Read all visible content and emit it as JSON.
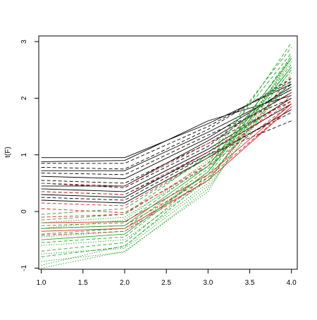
{
  "chart_data": {
    "type": "line",
    "title": "",
    "xlabel": "",
    "ylabel": "t(F)",
    "x": [
      1.0,
      2.0,
      3.0,
      4.0
    ],
    "xlim": [
      0.97,
      4.07
    ],
    "ylim": [
      -1.02,
      3.1
    ],
    "x_ticks": [
      "1.0",
      "1.5",
      "2.0",
      "2.5",
      "3.0",
      "3.5",
      "4.0"
    ],
    "x_tick_values": [
      1.0,
      1.5,
      2.0,
      2.5,
      3.0,
      3.5,
      4.0
    ],
    "y_ticks": [
      "-1",
      "0",
      "1",
      "2",
      "3"
    ],
    "y_tick_values": [
      -1,
      0,
      1,
      2,
      3
    ],
    "grid": false,
    "legend": "none",
    "colors": {
      "group_black": "#000000",
      "group_red": "#d62728",
      "group_green": "#2ca02c",
      "axis": "#000000"
    },
    "series_groups": [
      {
        "color_key": "group_black",
        "dash": "solid",
        "series": [
          {
            "values": [
              0.95,
              0.95,
              1.55,
              2.25
            ]
          },
          {
            "values": [
              0.88,
              0.9,
              1.6,
              2.05
            ]
          },
          {
            "values": [
              0.72,
              0.72,
              1.4,
              2.15
            ]
          },
          {
            "values": [
              0.62,
              0.58,
              1.3,
              2.2
            ]
          },
          {
            "values": [
              0.45,
              0.45,
              1.25,
              2.1
            ]
          },
          {
            "values": [
              0.4,
              0.35,
              1.1,
              2.0
            ]
          },
          {
            "values": [
              0.3,
              0.25,
              1.05,
              1.9
            ]
          },
          {
            "values": [
              0.2,
              0.15,
              0.95,
              1.8
            ]
          }
        ]
      },
      {
        "color_key": "group_black",
        "dash": "dashed",
        "series": [
          {
            "values": [
              0.85,
              0.85,
              1.5,
              2.3
            ]
          },
          {
            "values": [
              0.78,
              0.75,
              1.45,
              2.35
            ]
          },
          {
            "values": [
              0.68,
              0.65,
              1.35,
              2.0
            ]
          },
          {
            "values": [
              0.55,
              0.5,
              1.2,
              1.95
            ]
          },
          {
            "values": [
              0.5,
              0.42,
              1.15,
              2.25
            ]
          },
          {
            "values": [
              0.35,
              0.3,
              1.0,
              1.75
            ]
          },
          {
            "values": [
              0.25,
              0.2,
              1.0,
              1.6
            ]
          }
        ]
      },
      {
        "color_key": "group_red",
        "dash": "dashed",
        "series": [
          {
            "values": [
              0.5,
              0.45,
              1.2,
              2.1
            ]
          },
          {
            "values": [
              0.35,
              0.3,
              1.05,
              2.0
            ]
          },
          {
            "values": [
              0.15,
              0.1,
              0.95,
              1.95
            ]
          },
          {
            "values": [
              0.05,
              -0.02,
              0.8,
              1.9
            ]
          },
          {
            "values": [
              -0.1,
              -0.05,
              0.85,
              2.05
            ]
          },
          {
            "values": [
              -0.3,
              -0.25,
              0.6,
              1.85
            ]
          },
          {
            "values": [
              -0.42,
              -0.35,
              0.55,
              2.4
            ]
          }
        ]
      },
      {
        "color_key": "group_red",
        "dash": "solid",
        "series": [
          {
            "values": [
              -0.2,
              -0.18,
              0.65,
              1.9
            ]
          },
          {
            "values": [
              -0.35,
              -0.3,
              0.55,
              1.85
            ]
          }
        ]
      },
      {
        "color_key": "group_green",
        "dash": "dotted",
        "series": [
          {
            "values": [
              -0.2,
              -0.1,
              0.8,
              2.55
            ]
          },
          {
            "values": [
              -0.45,
              -0.35,
              0.7,
              2.65
            ]
          },
          {
            "values": [
              -0.6,
              -0.5,
              0.55,
              2.5
            ]
          },
          {
            "values": [
              -0.75,
              -0.65,
              0.45,
              2.35
            ]
          },
          {
            "values": [
              -0.88,
              -0.72,
              0.4,
              2.45
            ]
          },
          {
            "values": [
              -1.0,
              -0.7,
              0.35,
              2.75
            ]
          },
          {
            "values": [
              -0.95,
              -0.6,
              0.5,
              2.7
            ]
          },
          {
            "values": [
              -0.3,
              -0.15,
              0.9,
              2.2
            ]
          }
        ]
      },
      {
        "color_key": "group_green",
        "dash": "dashed",
        "series": [
          {
            "values": [
              -0.05,
              0.05,
              0.95,
              2.8
            ]
          },
          {
            "values": [
              -0.15,
              -0.05,
              1.0,
              2.9
            ]
          },
          {
            "values": [
              -0.25,
              -0.2,
              0.85,
              2.98
            ]
          },
          {
            "values": [
              -0.4,
              -0.3,
              0.75,
              2.6
            ]
          },
          {
            "values": [
              -0.55,
              -0.45,
              0.7,
              2.75
            ]
          },
          {
            "values": [
              -0.7,
              -0.55,
              0.65,
              2.5
            ]
          },
          {
            "values": [
              -0.8,
              -0.62,
              0.6,
              2.3
            ]
          }
        ]
      },
      {
        "color_key": "group_green",
        "dash": "solid",
        "series": [
          {
            "values": [
              -0.3,
              -0.25,
              0.8,
              2.7
            ]
          },
          {
            "values": [
              -0.5,
              -0.4,
              0.7,
              2.55
            ]
          }
        ]
      }
    ]
  }
}
